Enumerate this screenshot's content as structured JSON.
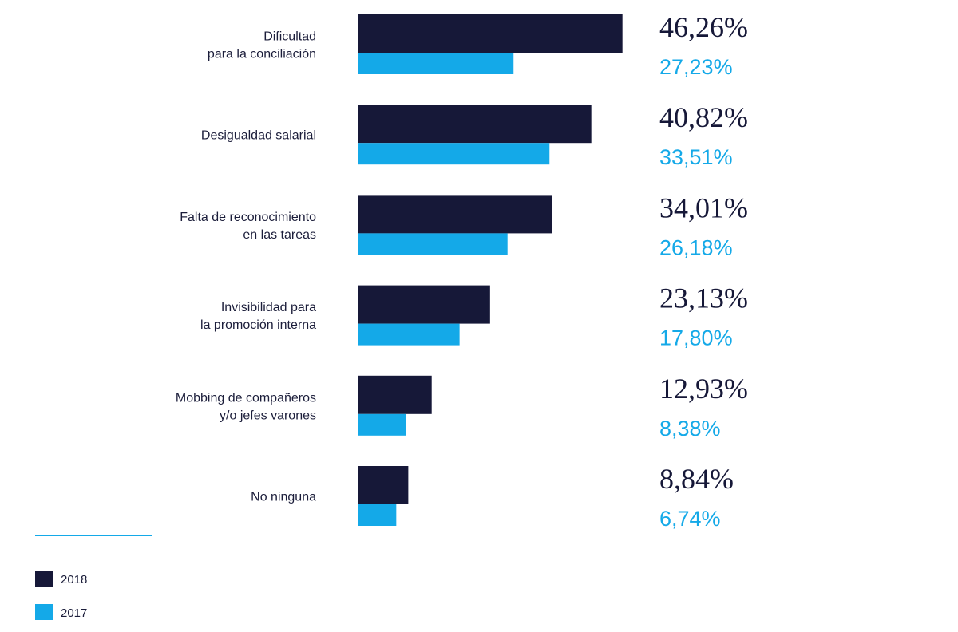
{
  "chart_data": {
    "type": "bar",
    "orientation": "horizontal",
    "categories": [
      [
        "Dificultad",
        "para la conciliación"
      ],
      [
        "Desigualdad salarial"
      ],
      [
        "Falta de reconocimiento",
        "en las tareas"
      ],
      [
        "Invisibilidad para",
        "la promoción interna"
      ],
      [
        "Mobbing de compañeros",
        "y/o jefes varones"
      ],
      [
        "No ninguna"
      ]
    ],
    "series": [
      {
        "name": "2018",
        "color": "#161838",
        "values": [
          46.26,
          40.82,
          34.01,
          23.13,
          12.93,
          8.84
        ],
        "labels": [
          "46,26%",
          "40,82%",
          "34,01%",
          "23,13%",
          "12,93%",
          "8,84%"
        ]
      },
      {
        "name": "2017",
        "color": "#14a9e8",
        "values": [
          27.23,
          33.51,
          26.18,
          17.8,
          8.38,
          6.74
        ],
        "labels": [
          "27,23%",
          "33,51%",
          "26,18%",
          "17,80%",
          "8,38%",
          "6,74%"
        ]
      }
    ],
    "xlim": [
      0,
      100
    ],
    "grid": false,
    "legend_position": "bottom-left"
  }
}
